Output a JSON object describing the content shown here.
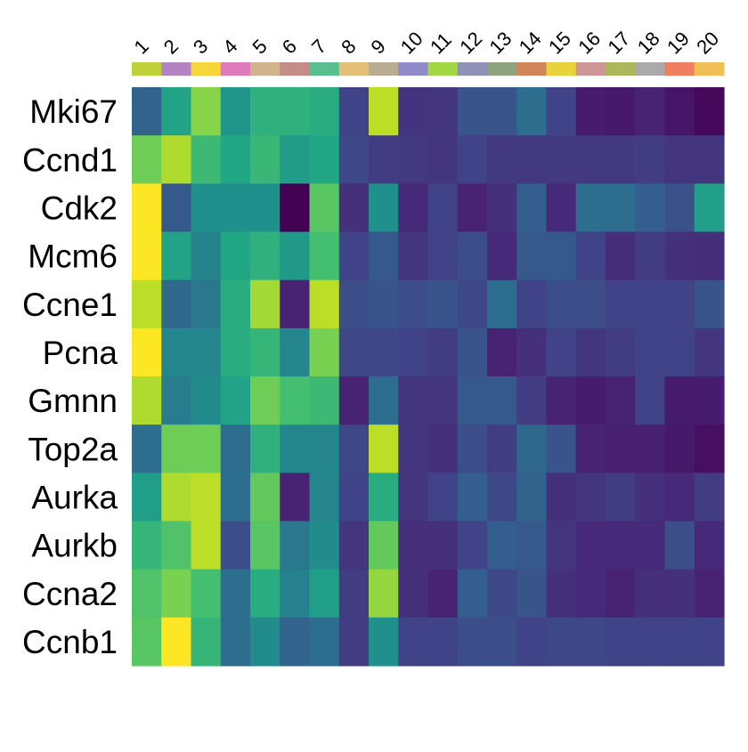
{
  "chart_data": {
    "type": "heatmap",
    "title": "",
    "xlabel": "",
    "ylabel": "",
    "legend": "none",
    "colormap": "viridis",
    "categories": [
      "1",
      "2",
      "3",
      "4",
      "5",
      "6",
      "7",
      "8",
      "9",
      "10",
      "11",
      "12",
      "13",
      "14",
      "15",
      "16",
      "17",
      "18",
      "19",
      "20"
    ],
    "category_colors": [
      "#bfd13a",
      "#b383c4",
      "#f7d63c",
      "#e07bbb",
      "#cfb48d",
      "#c58d86",
      "#58c08e",
      "#e4bf77",
      "#baab93",
      "#8f8bc9",
      "#a2d843",
      "#8e92b7",
      "#8fa27e",
      "#d3855a",
      "#e6d43a",
      "#cf9698",
      "#adb85d",
      "#aaaaaa",
      "#ef7f5e",
      "#f0bf55"
    ],
    "rows": [
      "Mki67",
      "Ccnd1",
      "Cdk2",
      "Mcm6",
      "Ccne1",
      "Pcna",
      "Gmnn",
      "Top2a",
      "Aurka",
      "Aurkb",
      "Ccna2",
      "Ccnb1"
    ],
    "value_range": [
      0,
      1
    ],
    "values": [
      [
        0.32,
        0.58,
        0.82,
        0.52,
        0.64,
        0.64,
        0.62,
        0.2,
        0.9,
        0.15,
        0.16,
        0.26,
        0.26,
        0.36,
        0.2,
        0.08,
        0.07,
        0.1,
        0.06,
        0.02
      ],
      [
        0.78,
        0.88,
        0.68,
        0.6,
        0.67,
        0.55,
        0.6,
        0.22,
        0.18,
        0.17,
        0.16,
        0.2,
        0.17,
        0.17,
        0.17,
        0.17,
        0.17,
        0.18,
        0.16,
        0.16
      ],
      [
        1.0,
        0.28,
        0.5,
        0.5,
        0.5,
        0.0,
        0.74,
        0.14,
        0.5,
        0.12,
        0.2,
        0.1,
        0.14,
        0.3,
        0.12,
        0.36,
        0.36,
        0.3,
        0.25,
        0.56
      ],
      [
        1.0,
        0.58,
        0.44,
        0.6,
        0.64,
        0.54,
        0.7,
        0.2,
        0.28,
        0.16,
        0.2,
        0.24,
        0.12,
        0.28,
        0.28,
        0.2,
        0.13,
        0.18,
        0.14,
        0.13
      ],
      [
        0.9,
        0.34,
        0.4,
        0.62,
        0.86,
        0.1,
        0.9,
        0.24,
        0.26,
        0.24,
        0.26,
        0.22,
        0.36,
        0.2,
        0.24,
        0.24,
        0.2,
        0.2,
        0.2,
        0.26
      ],
      [
        1.0,
        0.46,
        0.46,
        0.62,
        0.66,
        0.46,
        0.8,
        0.22,
        0.22,
        0.2,
        0.18,
        0.26,
        0.1,
        0.14,
        0.2,
        0.16,
        0.18,
        0.2,
        0.2,
        0.16
      ],
      [
        0.88,
        0.42,
        0.48,
        0.58,
        0.78,
        0.7,
        0.68,
        0.1,
        0.36,
        0.16,
        0.16,
        0.28,
        0.28,
        0.18,
        0.1,
        0.08,
        0.1,
        0.2,
        0.08,
        0.08
      ],
      [
        0.36,
        0.78,
        0.78,
        0.36,
        0.64,
        0.46,
        0.46,
        0.22,
        0.9,
        0.16,
        0.14,
        0.24,
        0.18,
        0.34,
        0.26,
        0.1,
        0.09,
        0.09,
        0.07,
        0.04
      ],
      [
        0.56,
        0.88,
        0.9,
        0.36,
        0.76,
        0.1,
        0.46,
        0.2,
        0.62,
        0.16,
        0.2,
        0.3,
        0.22,
        0.32,
        0.14,
        0.16,
        0.18,
        0.14,
        0.12,
        0.18
      ],
      [
        0.66,
        0.72,
        0.9,
        0.24,
        0.74,
        0.4,
        0.48,
        0.16,
        0.76,
        0.14,
        0.14,
        0.2,
        0.3,
        0.28,
        0.16,
        0.12,
        0.12,
        0.12,
        0.24,
        0.12
      ],
      [
        0.72,
        0.8,
        0.7,
        0.36,
        0.62,
        0.44,
        0.56,
        0.18,
        0.84,
        0.14,
        0.1,
        0.3,
        0.22,
        0.26,
        0.14,
        0.12,
        0.1,
        0.14,
        0.14,
        0.1
      ],
      [
        0.74,
        1.0,
        0.66,
        0.36,
        0.48,
        0.32,
        0.36,
        0.18,
        0.5,
        0.2,
        0.2,
        0.24,
        0.24,
        0.2,
        0.22,
        0.22,
        0.2,
        0.2,
        0.2,
        0.2
      ]
    ]
  }
}
